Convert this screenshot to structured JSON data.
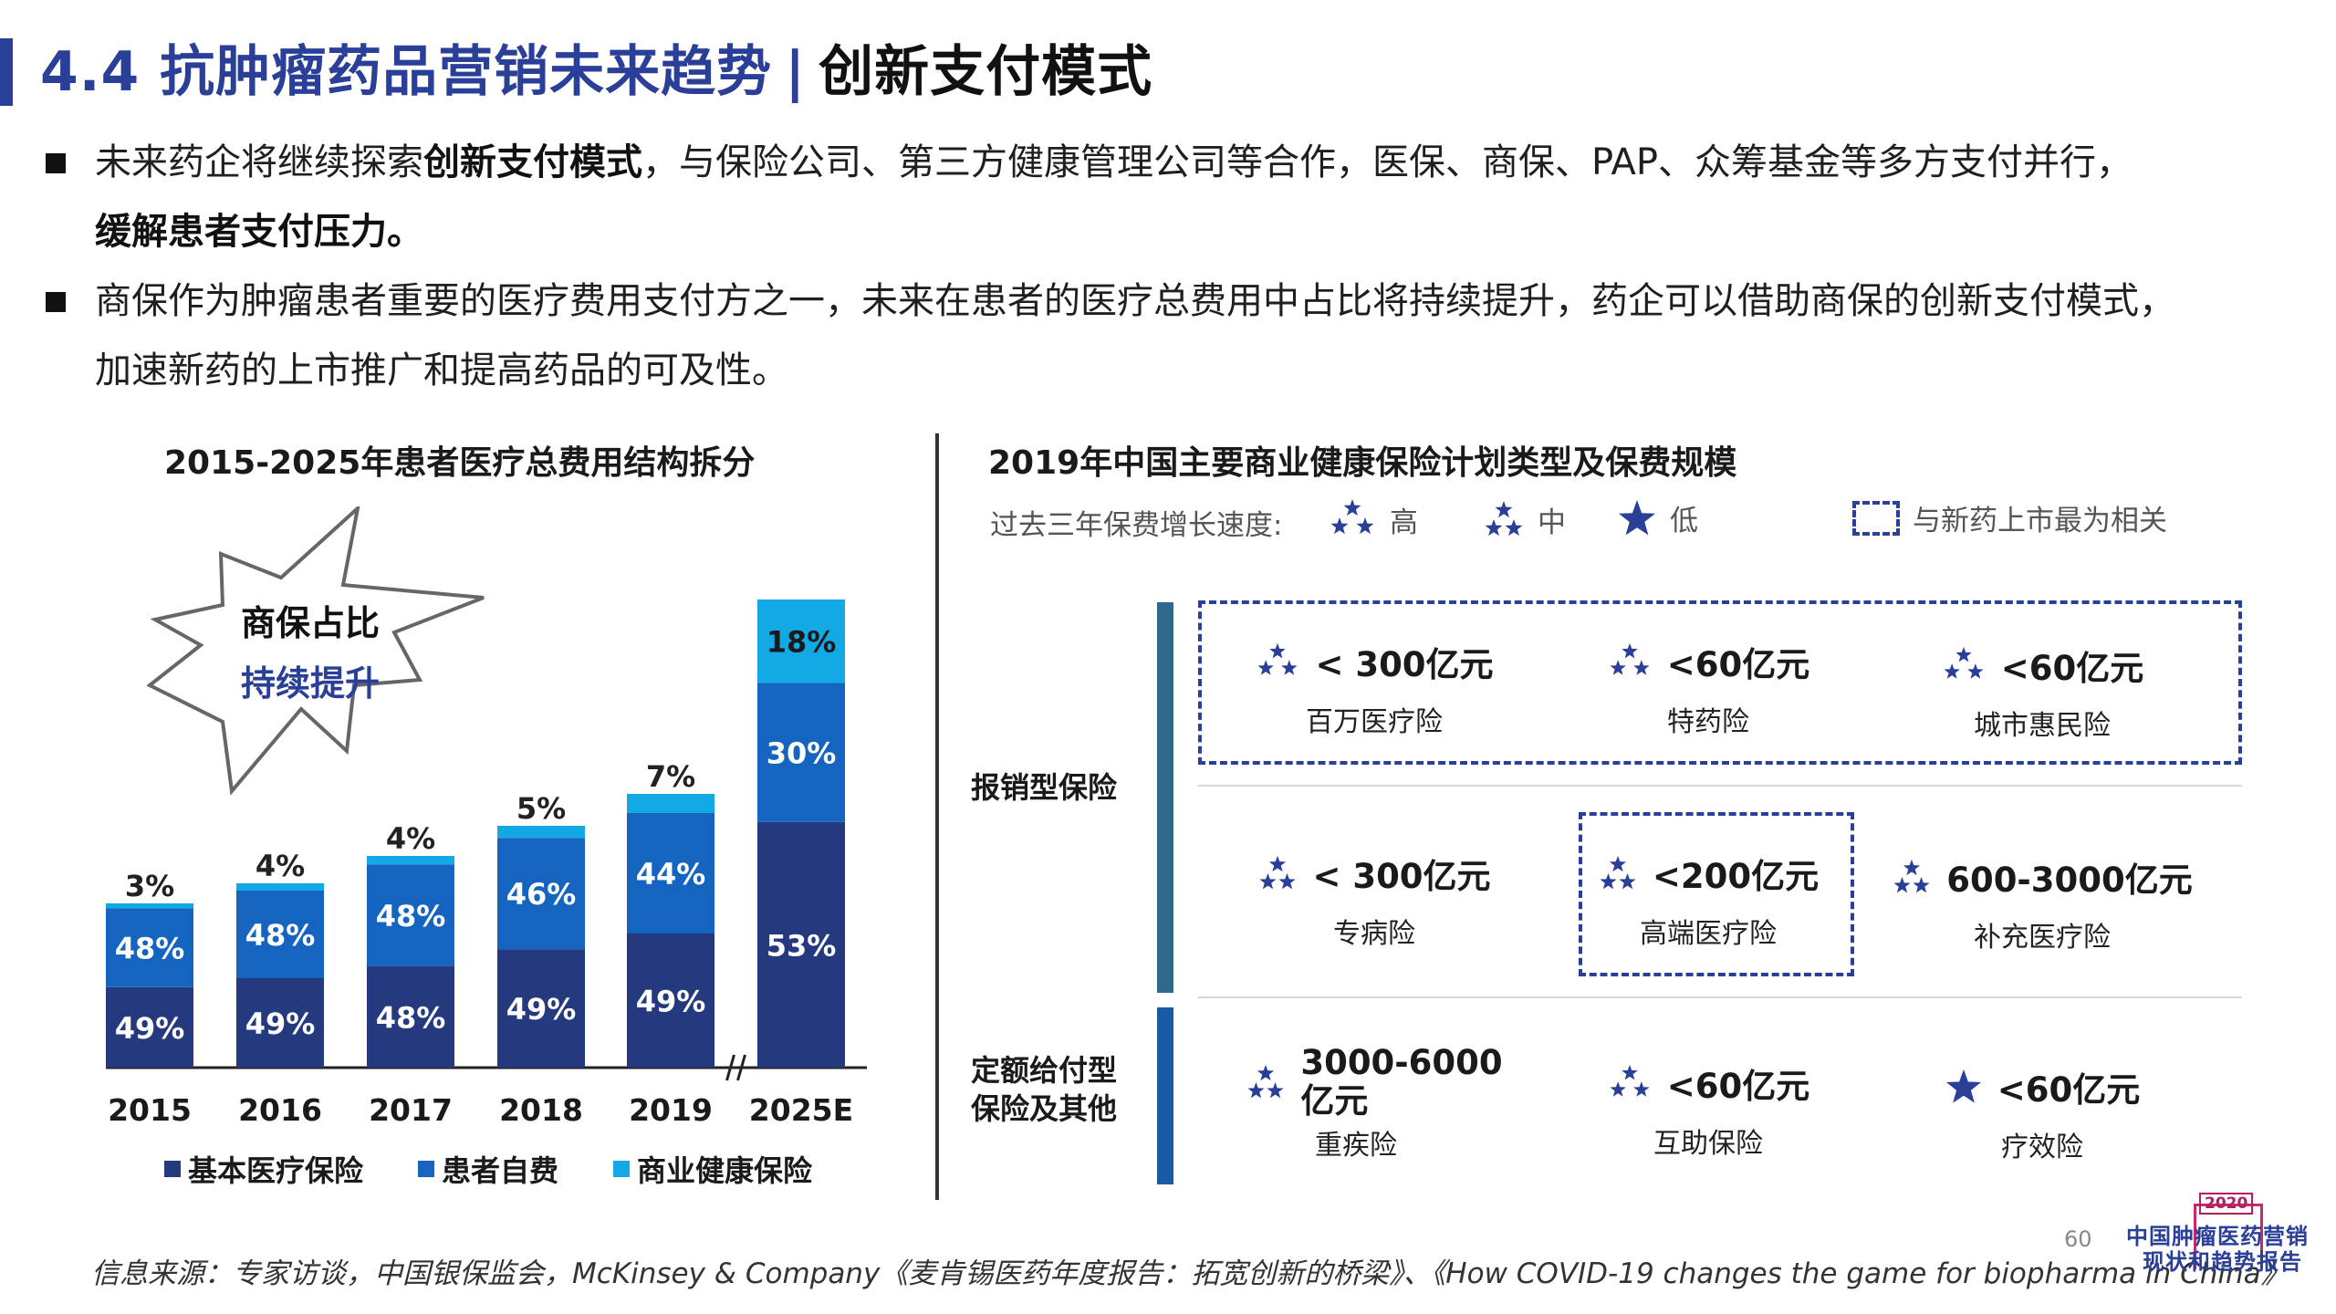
{
  "header": {
    "title_main": "4.4 抗肿瘤药品营销未来趋势",
    "title_sep": "|",
    "title_sub": "创新支付模式"
  },
  "bullets": [
    {
      "pre": "未来药企将继续探索",
      "bold1": "创新支付模式",
      "mid": "，与保险公司、第三方健康管理公司等合作，医保、商保、PAP、众筹基金等多方支付并行，",
      "bold2": "缓解患者支付压力。"
    },
    {
      "text1": "商保作为肿瘤患者重要的医疗费用支付方之一，未来在患者的医疗总费用中占比将持续提升，药企可以借助商保的创新支付模式，",
      "text2": "加速新药的上市推广和提高药品的可及性。"
    }
  ],
  "left_panel": {
    "callout_line1": "商保占比",
    "callout_line2": "持续提升"
  },
  "chart_data": {
    "type": "bar",
    "stacked": true,
    "title": "2015-2025年患者医疗总费用结构拆分",
    "categories": [
      "2015",
      "2016",
      "2017",
      "2018",
      "2019",
      "2025E"
    ],
    "series": [
      {
        "name": "基本医疗保险",
        "color": "#253a7e",
        "values": [
          49,
          49,
          48,
          49,
          49,
          53
        ]
      },
      {
        "name": "患者自费",
        "color": "#1565c0",
        "values": [
          48,
          48,
          48,
          46,
          44,
          30
        ]
      },
      {
        "name": "商业健康保险",
        "color": "#12a9e5",
        "values": [
          3,
          4,
          4,
          5,
          7,
          18
        ]
      }
    ],
    "unit": "%",
    "axis_break_before": "2025E",
    "legend_position": "bottom"
  },
  "right_panel": {
    "title": "2019年中国主要商业健康保险计划类型及保费规模",
    "speed_label": "过去三年保费增长速度:",
    "speed_high": "高",
    "speed_mid": "中",
    "speed_low": "低",
    "related_label": "与新药上市最为相关",
    "category_1": "报销型保险",
    "category_2_line1": "定额给付型",
    "category_2_line2": "保险及其他",
    "plans": [
      {
        "value": "< 300亿元",
        "name": "百万医疗险",
        "growth": "high"
      },
      {
        "value": "<60亿元",
        "name": "特药险",
        "growth": "high"
      },
      {
        "value": "<60亿元",
        "name": "城市惠民险",
        "growth": "high"
      },
      {
        "value": "< 300亿元",
        "name": "专病险",
        "growth": "mid"
      },
      {
        "value": "<200亿元",
        "name": "高端医疗险",
        "growth": "mid"
      },
      {
        "value": "600-3000亿元",
        "name": "补充医疗险",
        "growth": "mid"
      },
      {
        "value_line1": "3000-6000",
        "value_line2": "亿元",
        "name": "重疾险",
        "growth": "mid"
      },
      {
        "value": "<60亿元",
        "name": "互助保险",
        "growth": "high"
      },
      {
        "value": "<60亿元",
        "name": "疗效险",
        "growth": "low"
      }
    ]
  },
  "footer": {
    "source": "信息来源：专家访谈，中国银保监会，McKinsey & Company《麦肯锡医药年度报告：拓宽创新的桥梁》、《How COVID-19 changes the game for biopharma in China》",
    "page_number": "60",
    "logo_year": "2020",
    "logo_line1": "中国肿瘤医药营销",
    "logo_line2": "现状和趋势报告"
  },
  "colors": {
    "accent": "#2a3f97",
    "navy": "#253a7e",
    "blue": "#1565c0",
    "cyan": "#12a9e5",
    "side_bar_1": "#2e6a8e",
    "side_bar_2": "#1a5ba6"
  }
}
